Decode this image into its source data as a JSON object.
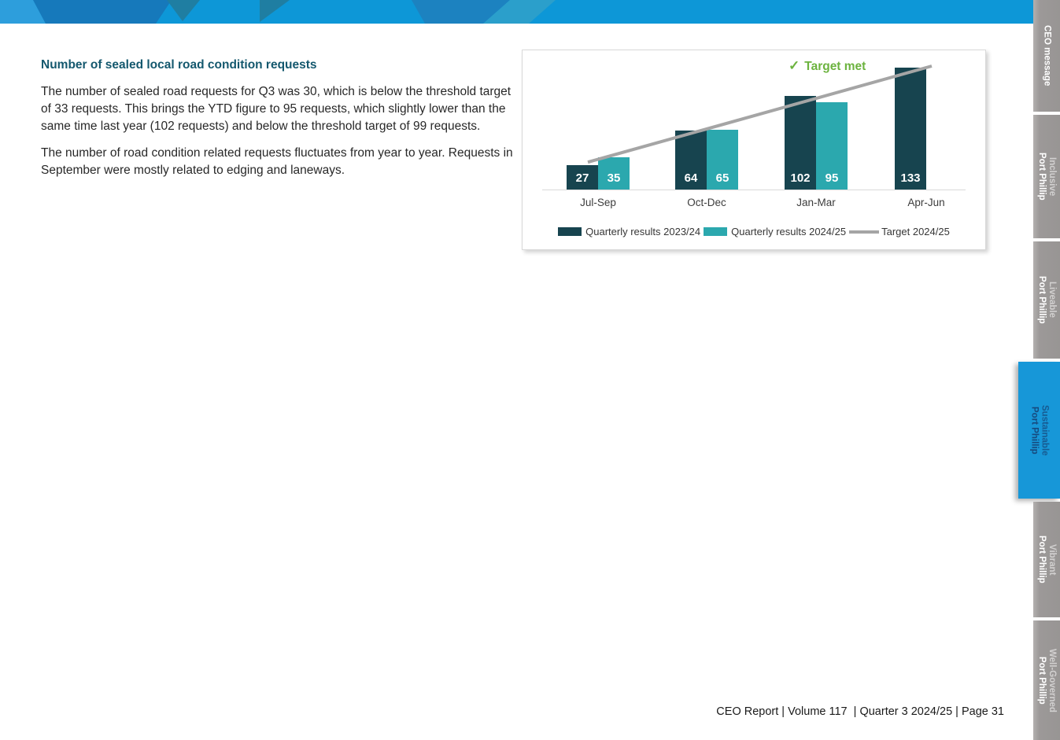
{
  "page": {
    "footer": "CEO Report | Volume 117  | Quarter 3 2024/25 | Page 31"
  },
  "article": {
    "title": "Number of sealed local road condition requests",
    "paragraphs": [
      "The number of sealed road requests for Q3 was 30, which is below the threshold target of 33 requests. This brings the YTD figure to 95 requests, which slightly lower than the same time last year (102 requests) and below the threshold target of 99 requests.",
      "The number of road condition related requests fluctuates from year to year. Requests in September were mostly related to edging and laneways."
    ]
  },
  "chart_data": {
    "type": "bar",
    "title": "",
    "categories": [
      "Jul-Sep",
      "Oct-Dec",
      "Jan-Mar",
      "Apr-Jun"
    ],
    "series": [
      {
        "name": "Quarterly results 2023/24",
        "style": "bar",
        "color": "#17444F",
        "values": [
          27,
          64,
          102,
          133
        ]
      },
      {
        "name": "Quarterly results 2024/25",
        "style": "bar",
        "color": "#2BA8AE",
        "values": [
          35,
          65,
          95,
          null
        ]
      },
      {
        "name": "Target 2024/25",
        "style": "line",
        "color": "#A5A5A5",
        "values": [
          33,
          66,
          99,
          133
        ]
      }
    ],
    "annotation": {
      "check": "✓",
      "label": "Target met"
    },
    "xlabel": "",
    "ylabel": "",
    "ylim": [
      0,
      140
    ],
    "grid": false,
    "legend_position": "bottom"
  },
  "sidebar": {
    "tabs": [
      {
        "label_lines": [
          "CEO message"
        ],
        "active": false
      },
      {
        "label_lines": [
          "Inclusive",
          "Port Phillip"
        ],
        "active": false
      },
      {
        "label_lines": [
          "Liveable",
          "Port Phillip"
        ],
        "active": false
      },
      {
        "label_lines": [
          "Sustainable",
          "Port Phillip"
        ],
        "active": true
      },
      {
        "label_lines": [
          "Vibrant",
          "Port Phillip"
        ],
        "active": false
      },
      {
        "label_lines": [
          "Well-Governed",
          "Port Phillip"
        ],
        "active": false
      }
    ]
  },
  "colors": {
    "header_blue": "#0D97D7",
    "header_dark_blue": "#1679BB",
    "header_teal": "#1F7EA2",
    "sidebar_gray": "#9C9998",
    "active_tab_blue": "#1797D8",
    "active_tab_text": "#174A7E",
    "heading_teal": "#14586E",
    "target_met_green": "#6CB33F",
    "bar_dark_teal": "#17444F",
    "bar_teal": "#2BA8AE",
    "target_line_gray": "#A5A5A5"
  }
}
